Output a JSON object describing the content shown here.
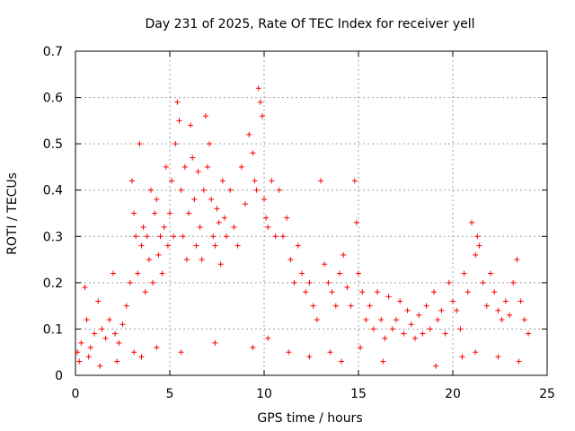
{
  "chart_data": {
    "type": "scatter",
    "title": "Day 231 of 2025, Rate Of TEC Index for receiver yell",
    "xlabel": "GPS time / hours",
    "ylabel": "ROTI / TECUs",
    "xlim": [
      0,
      25
    ],
    "ylim": [
      0,
      0.7
    ],
    "xticks": [
      0,
      5,
      10,
      15,
      20,
      25
    ],
    "xtick_labels": [
      "0",
      "5",
      "10",
      "15",
      "20",
      "25"
    ],
    "yticks": [
      0,
      0.1,
      0.2,
      0.3,
      0.4,
      0.5,
      0.6,
      0.7
    ],
    "ytick_labels": [
      "0",
      "0.1",
      "0.2",
      "0.3",
      "0.4",
      "0.5",
      "0.6",
      "0.7"
    ],
    "grid": true,
    "marker": "+",
    "color": "#ff0000",
    "series": [
      {
        "name": "ROTI",
        "x": [
          0.1,
          0.3,
          0.5,
          0.6,
          0.8,
          1.0,
          1.2,
          1.4,
          1.6,
          1.8,
          2.0,
          2.1,
          2.3,
          2.5,
          2.7,
          2.9,
          3.0,
          3.1,
          3.2,
          3.3,
          3.4,
          3.5,
          3.6,
          3.7,
          3.8,
          3.9,
          4.0,
          4.1,
          4.2,
          4.3,
          4.4,
          4.5,
          4.6,
          4.7,
          4.8,
          4.9,
          5.0,
          5.1,
          5.2,
          5.3,
          5.4,
          5.5,
          5.6,
          5.7,
          5.8,
          5.9,
          6.0,
          6.1,
          6.2,
          6.3,
          6.4,
          6.5,
          6.6,
          6.7,
          6.8,
          6.9,
          7.0,
          7.1,
          7.2,
          7.3,
          7.4,
          7.5,
          7.6,
          7.7,
          7.8,
          7.9,
          8.0,
          8.2,
          8.4,
          8.6,
          8.8,
          9.0,
          9.2,
          9.4,
          9.5,
          9.6,
          9.7,
          9.8,
          9.9,
          10.0,
          10.1,
          10.2,
          10.4,
          10.6,
          10.8,
          11.0,
          11.2,
          11.4,
          11.6,
          11.8,
          12.0,
          12.2,
          12.4,
          12.6,
          12.8,
          13.0,
          13.2,
          13.4,
          13.6,
          13.8,
          14.0,
          14.2,
          14.4,
          14.6,
          14.8,
          14.9,
          15.0,
          15.2,
          15.4,
          15.6,
          15.8,
          16.0,
          16.2,
          16.4,
          16.6,
          16.8,
          17.0,
          17.2,
          17.4,
          17.6,
          17.8,
          18.0,
          18.2,
          18.4,
          18.6,
          18.8,
          19.0,
          19.2,
          19.4,
          19.6,
          19.8,
          20.0,
          20.2,
          20.4,
          20.6,
          20.8,
          21.0,
          21.2,
          21.3,
          21.4,
          21.6,
          21.8,
          22.0,
          22.2,
          22.4,
          22.6,
          22.8,
          23.0,
          23.2,
          23.4,
          23.6,
          23.8,
          24.0,
          0.2,
          0.7,
          1.3,
          2.2,
          3.1,
          3.5,
          4.3,
          5.6,
          7.4,
          9.4,
          10.2,
          11.3,
          12.4,
          13.5,
          14.1,
          15.1,
          16.3,
          19.1,
          20.5,
          21.2,
          22.4,
          23.5
        ],
        "y": [
          0.05,
          0.07,
          0.19,
          0.12,
          0.06,
          0.09,
          0.16,
          0.1,
          0.08,
          0.12,
          0.22,
          0.09,
          0.07,
          0.11,
          0.15,
          0.2,
          0.42,
          0.35,
          0.3,
          0.22,
          0.5,
          0.28,
          0.32,
          0.18,
          0.3,
          0.25,
          0.4,
          0.2,
          0.35,
          0.38,
          0.26,
          0.3,
          0.22,
          0.32,
          0.45,
          0.28,
          0.35,
          0.42,
          0.3,
          0.5,
          0.59,
          0.55,
          0.4,
          0.3,
          0.45,
          0.25,
          0.35,
          0.54,
          0.47,
          0.38,
          0.28,
          0.44,
          0.32,
          0.25,
          0.4,
          0.56,
          0.45,
          0.5,
          0.38,
          0.3,
          0.28,
          0.36,
          0.33,
          0.24,
          0.42,
          0.34,
          0.3,
          0.4,
          0.32,
          0.28,
          0.45,
          0.37,
          0.52,
          0.48,
          0.42,
          0.4,
          0.62,
          0.59,
          0.56,
          0.38,
          0.34,
          0.32,
          0.42,
          0.3,
          0.4,
          0.3,
          0.34,
          0.25,
          0.2,
          0.28,
          0.22,
          0.18,
          0.2,
          0.15,
          0.12,
          0.42,
          0.24,
          0.2,
          0.18,
          0.15,
          0.22,
          0.26,
          0.19,
          0.15,
          0.42,
          0.33,
          0.22,
          0.18,
          0.12,
          0.15,
          0.1,
          0.18,
          0.12,
          0.08,
          0.17,
          0.1,
          0.12,
          0.16,
          0.09,
          0.14,
          0.11,
          0.08,
          0.13,
          0.09,
          0.15,
          0.1,
          0.18,
          0.12,
          0.14,
          0.09,
          0.2,
          0.16,
          0.14,
          0.1,
          0.22,
          0.18,
          0.33,
          0.26,
          0.3,
          0.28,
          0.2,
          0.15,
          0.22,
          0.18,
          0.14,
          0.12,
          0.16,
          0.13,
          0.2,
          0.25,
          0.16,
          0.12,
          0.09,
          0.03,
          0.04,
          0.02,
          0.03,
          0.05,
          0.04,
          0.06,
          0.05,
          0.07,
          0.06,
          0.08,
          0.05,
          0.04,
          0.05,
          0.03,
          0.06,
          0.03,
          0.02,
          0.04,
          0.05,
          0.04,
          0.03
        ]
      }
    ]
  }
}
